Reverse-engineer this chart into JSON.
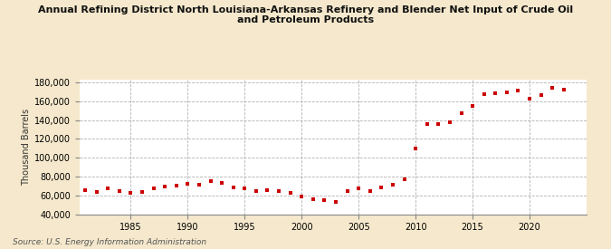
{
  "title": "Annual Refining District North Louisiana-Arkansas Refinery and Blender Net Input of Crude Oil\nand Petroleum Products",
  "ylabel": "Thousand Barrels",
  "source": "Source: U.S. Energy Information Administration",
  "background_color": "#f5e8cc",
  "plot_background": "#ffffff",
  "marker_color": "#cc0000",
  "years": [
    1981,
    1982,
    1983,
    1984,
    1985,
    1986,
    1987,
    1988,
    1989,
    1990,
    1991,
    1992,
    1993,
    1994,
    1995,
    1996,
    1997,
    1998,
    1999,
    2000,
    2001,
    2002,
    2003,
    2004,
    2005,
    2006,
    2007,
    2008,
    2009,
    2010,
    2011,
    2012,
    2013,
    2014,
    2015,
    2016,
    2017,
    2018,
    2019,
    2020,
    2021,
    2022,
    2023
  ],
  "values": [
    66000,
    64000,
    67000,
    65000,
    63000,
    64000,
    67000,
    69000,
    70000,
    72000,
    71000,
    75000,
    73000,
    68000,
    67000,
    65000,
    66000,
    65000,
    63000,
    59000,
    56000,
    55000,
    53000,
    65000,
    67000,
    65000,
    68000,
    71000,
    77000,
    110000,
    136000,
    136000,
    138000,
    147000,
    155000,
    168000,
    169000,
    170000,
    171000,
    163000,
    167000,
    174000,
    172000
  ],
  "ylim": [
    40000,
    183000
  ],
  "yticks": [
    40000,
    60000,
    80000,
    100000,
    120000,
    140000,
    160000,
    180000
  ],
  "xlim": [
    1980.5,
    2025
  ],
  "xticks": [
    1985,
    1990,
    1995,
    2000,
    2005,
    2010,
    2015,
    2020
  ]
}
